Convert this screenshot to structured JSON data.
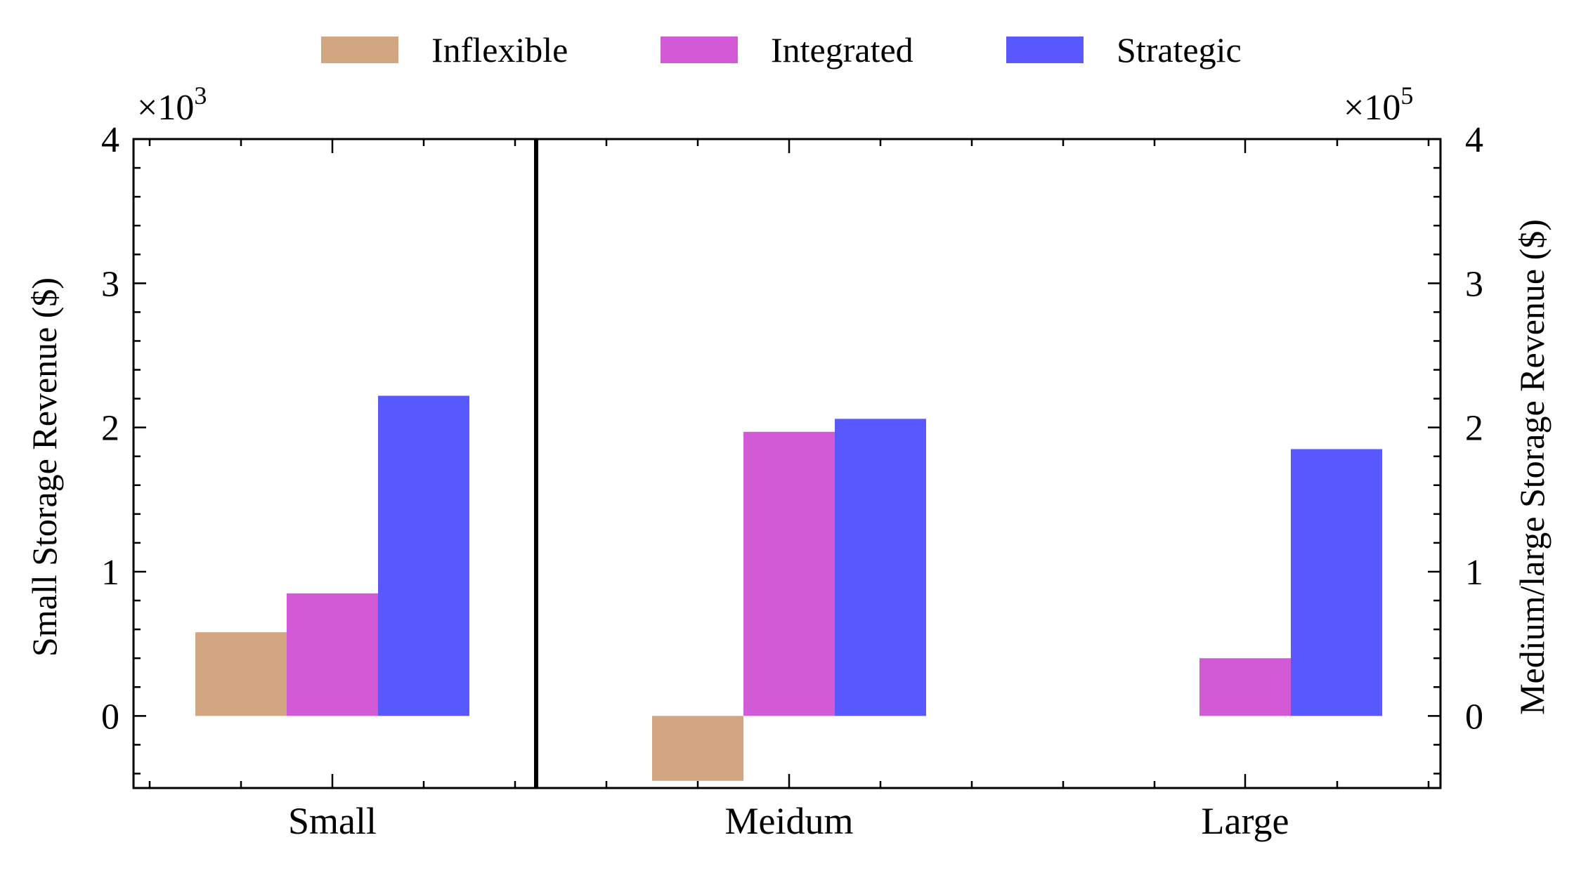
{
  "chart_data": {
    "type": "bar",
    "categories": [
      "Small",
      "Meidum",
      "Large"
    ],
    "series": [
      {
        "name": "Inflexible",
        "color": "#d2a680",
        "values": [
          0.58,
          -0.45,
          0.0
        ]
      },
      {
        "name": "Integrated",
        "color": "#d35ad6",
        "values": [
          0.85,
          1.97,
          0.4
        ]
      },
      {
        "name": "Strategic",
        "color": "#5a59fd",
        "values": [
          2.22,
          2.06,
          1.85
        ]
      }
    ],
    "left_axis": {
      "label": "Small Storage Revenue ($)",
      "multiplier": "×10",
      "exponent": "3",
      "ticks": [
        "0",
        "1",
        "2",
        "3",
        "4"
      ],
      "ylim": [
        -0.5,
        4
      ]
    },
    "right_axis": {
      "label": "Medium/large Storage Revenue ($)",
      "multiplier": "×10",
      "exponent": "5",
      "ticks": [
        "0",
        "1",
        "2",
        "3",
        "4"
      ],
      "ylim": [
        -0.5,
        4
      ]
    },
    "note": "Small category is read on the left axis (×10^3); Meidum and Large on the right axis (×10^5).",
    "legend_position": "top",
    "grid": false
  }
}
